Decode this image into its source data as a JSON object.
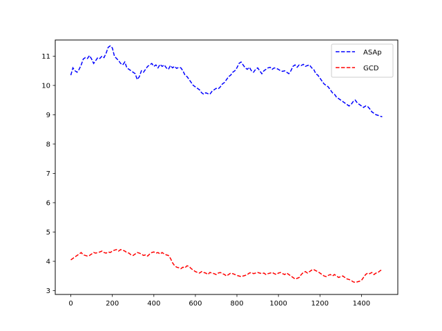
{
  "chart_data": {
    "type": "line",
    "title": "",
    "xlabel": "",
    "ylabel": "",
    "xlim": [
      -75,
      1575
    ],
    "ylim": [
      2.87,
      11.55
    ],
    "xticks": [
      0,
      200,
      400,
      600,
      800,
      1000,
      1200,
      1400
    ],
    "yticks": [
      3,
      4,
      5,
      6,
      7,
      8,
      9,
      10,
      11
    ],
    "grid": false,
    "legend_position": "top-right",
    "series": [
      {
        "name": "ASAp",
        "color": "#0000ff",
        "linestyle": "dashed",
        "x": [
          0,
          10,
          20,
          30,
          40,
          50,
          60,
          70,
          80,
          90,
          100,
          110,
          120,
          130,
          140,
          150,
          160,
          170,
          180,
          190,
          200,
          210,
          220,
          230,
          240,
          250,
          260,
          270,
          280,
          290,
          300,
          310,
          320,
          330,
          340,
          350,
          360,
          370,
          380,
          390,
          400,
          410,
          420,
          430,
          440,
          450,
          460,
          470,
          480,
          490,
          500,
          510,
          520,
          530,
          540,
          550,
          560,
          570,
          580,
          590,
          600,
          610,
          620,
          630,
          640,
          650,
          660,
          670,
          680,
          690,
          700,
          710,
          720,
          730,
          740,
          750,
          760,
          770,
          780,
          790,
          800,
          810,
          820,
          830,
          840,
          850,
          860,
          870,
          880,
          890,
          900,
          910,
          920,
          930,
          940,
          950,
          960,
          970,
          980,
          990,
          1000,
          1010,
          1020,
          1030,
          1040,
          1050,
          1060,
          1070,
          1080,
          1090,
          1100,
          1110,
          1120,
          1130,
          1140,
          1150,
          1160,
          1170,
          1180,
          1190,
          1200,
          1210,
          1220,
          1230,
          1240,
          1250,
          1260,
          1270,
          1280,
          1290,
          1300,
          1310,
          1320,
          1330,
          1340,
          1350,
          1360,
          1370,
          1380,
          1390,
          1400,
          1410,
          1420,
          1430,
          1440,
          1450,
          1460,
          1470,
          1480,
          1490,
          1500
        ],
        "y": [
          10.35,
          10.6,
          10.5,
          10.45,
          10.55,
          10.7,
          10.9,
          10.95,
          10.92,
          11.02,
          10.9,
          10.75,
          10.85,
          10.95,
          10.92,
          11.0,
          10.95,
          11.1,
          11.3,
          11.35,
          11.28,
          11.0,
          10.92,
          10.85,
          10.75,
          10.7,
          10.8,
          10.6,
          10.55,
          10.5,
          10.45,
          10.4,
          10.2,
          10.3,
          10.5,
          10.45,
          10.55,
          10.65,
          10.7,
          10.75,
          10.65,
          10.7,
          10.6,
          10.72,
          10.65,
          10.7,
          10.6,
          10.55,
          10.68,
          10.6,
          10.65,
          10.58,
          10.62,
          10.6,
          10.5,
          10.35,
          10.3,
          10.2,
          10.1,
          10.0,
          9.95,
          9.9,
          9.85,
          9.75,
          9.7,
          9.75,
          9.72,
          9.7,
          9.8,
          9.85,
          9.9,
          9.88,
          9.95,
          10.05,
          10.1,
          10.2,
          10.3,
          10.35,
          10.45,
          10.5,
          10.6,
          10.75,
          10.8,
          10.7,
          10.6,
          10.55,
          10.62,
          10.5,
          10.45,
          10.55,
          10.6,
          10.5,
          10.4,
          10.5,
          10.55,
          10.6,
          10.62,
          10.55,
          10.6,
          10.58,
          10.55,
          10.5,
          10.48,
          10.5,
          10.45,
          10.4,
          10.5,
          10.65,
          10.7,
          10.62,
          10.7,
          10.68,
          10.72,
          10.65,
          10.68,
          10.7,
          10.6,
          10.55,
          10.4,
          10.35,
          10.25,
          10.15,
          10.05,
          10.0,
          9.95,
          9.85,
          9.75,
          9.7,
          9.6,
          9.55,
          9.5,
          9.45,
          9.4,
          9.35,
          9.3,
          9.35,
          9.45,
          9.5,
          9.4,
          9.35,
          9.3,
          9.25,
          9.3,
          9.28,
          9.2,
          9.1,
          9.05,
          9.0,
          8.98,
          8.95,
          8.93
        ]
      },
      {
        "name": "GCD",
        "color": "#ff0000",
        "linestyle": "dashed",
        "x": [
          0,
          10,
          20,
          30,
          40,
          50,
          60,
          70,
          80,
          90,
          100,
          110,
          120,
          130,
          140,
          150,
          160,
          170,
          180,
          190,
          200,
          210,
          220,
          230,
          240,
          250,
          260,
          270,
          280,
          290,
          300,
          310,
          320,
          330,
          340,
          350,
          360,
          370,
          380,
          390,
          400,
          410,
          420,
          430,
          440,
          450,
          460,
          470,
          480,
          490,
          500,
          510,
          520,
          530,
          540,
          550,
          560,
          570,
          580,
          590,
          600,
          610,
          620,
          630,
          640,
          650,
          660,
          670,
          680,
          690,
          700,
          710,
          720,
          730,
          740,
          750,
          760,
          770,
          780,
          790,
          800,
          810,
          820,
          830,
          840,
          850,
          860,
          870,
          880,
          890,
          900,
          910,
          920,
          930,
          940,
          950,
          960,
          970,
          980,
          990,
          1000,
          1010,
          1020,
          1030,
          1040,
          1050,
          1060,
          1070,
          1080,
          1090,
          1100,
          1110,
          1120,
          1130,
          1140,
          1150,
          1160,
          1170,
          1180,
          1190,
          1200,
          1210,
          1220,
          1230,
          1240,
          1250,
          1260,
          1270,
          1280,
          1290,
          1300,
          1310,
          1320,
          1330,
          1340,
          1350,
          1360,
          1370,
          1380,
          1390,
          1400,
          1410,
          1420,
          1430,
          1440,
          1450,
          1460,
          1470,
          1480,
          1490,
          1500
        ],
        "y": [
          4.05,
          4.1,
          4.15,
          4.2,
          4.25,
          4.3,
          4.22,
          4.2,
          4.18,
          4.2,
          4.25,
          4.3,
          4.28,
          4.3,
          4.32,
          4.35,
          4.3,
          4.28,
          4.32,
          4.3,
          4.35,
          4.38,
          4.4,
          4.35,
          4.4,
          4.38,
          4.35,
          4.3,
          4.28,
          4.22,
          4.2,
          4.25,
          4.3,
          4.28,
          4.25,
          4.2,
          4.22,
          4.18,
          4.25,
          4.3,
          4.32,
          4.28,
          4.3,
          4.25,
          4.3,
          4.25,
          4.22,
          4.2,
          4.1,
          3.95,
          3.85,
          3.8,
          3.78,
          3.75,
          3.8,
          3.78,
          3.85,
          3.82,
          3.75,
          3.7,
          3.65,
          3.62,
          3.6,
          3.65,
          3.62,
          3.6,
          3.55,
          3.62,
          3.6,
          3.58,
          3.55,
          3.6,
          3.62,
          3.58,
          3.55,
          3.5,
          3.55,
          3.6,
          3.58,
          3.55,
          3.52,
          3.5,
          3.48,
          3.5,
          3.52,
          3.55,
          3.6,
          3.62,
          3.58,
          3.6,
          3.62,
          3.6,
          3.58,
          3.6,
          3.55,
          3.58,
          3.6,
          3.62,
          3.58,
          3.55,
          3.6,
          3.62,
          3.58,
          3.55,
          3.6,
          3.55,
          3.5,
          3.45,
          3.4,
          3.42,
          3.45,
          3.55,
          3.62,
          3.65,
          3.6,
          3.65,
          3.7,
          3.72,
          3.68,
          3.65,
          3.6,
          3.55,
          3.5,
          3.48,
          3.52,
          3.55,
          3.5,
          3.55,
          3.5,
          3.45,
          3.48,
          3.5,
          3.45,
          3.4,
          3.38,
          3.35,
          3.3,
          3.28,
          3.3,
          3.32,
          3.35,
          3.45,
          3.55,
          3.6,
          3.58,
          3.62,
          3.55,
          3.6,
          3.62,
          3.68,
          3.72
        ]
      }
    ]
  }
}
